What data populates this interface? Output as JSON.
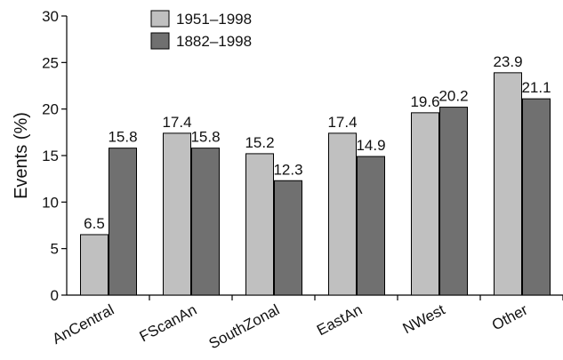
{
  "chart_data": {
    "type": "bar",
    "y_label": "Events (%)",
    "categories": [
      "AnCentral",
      "FScanAn",
      "SouthZonal",
      "EastAn",
      "NWest",
      "Other"
    ],
    "series": [
      {
        "name": "1951–1998",
        "color": "#c0c0c0",
        "values": [
          6.5,
          17.4,
          15.2,
          17.4,
          19.6,
          23.9
        ]
      },
      {
        "name": "1882–1998",
        "color": "#707070",
        "values": [
          15.8,
          15.8,
          12.3,
          14.9,
          20.2,
          21.1
        ]
      }
    ],
    "ylim": [
      0,
      30
    ],
    "yticks": [
      0,
      5,
      10,
      15,
      20,
      25,
      30
    ],
    "grid": false
  }
}
